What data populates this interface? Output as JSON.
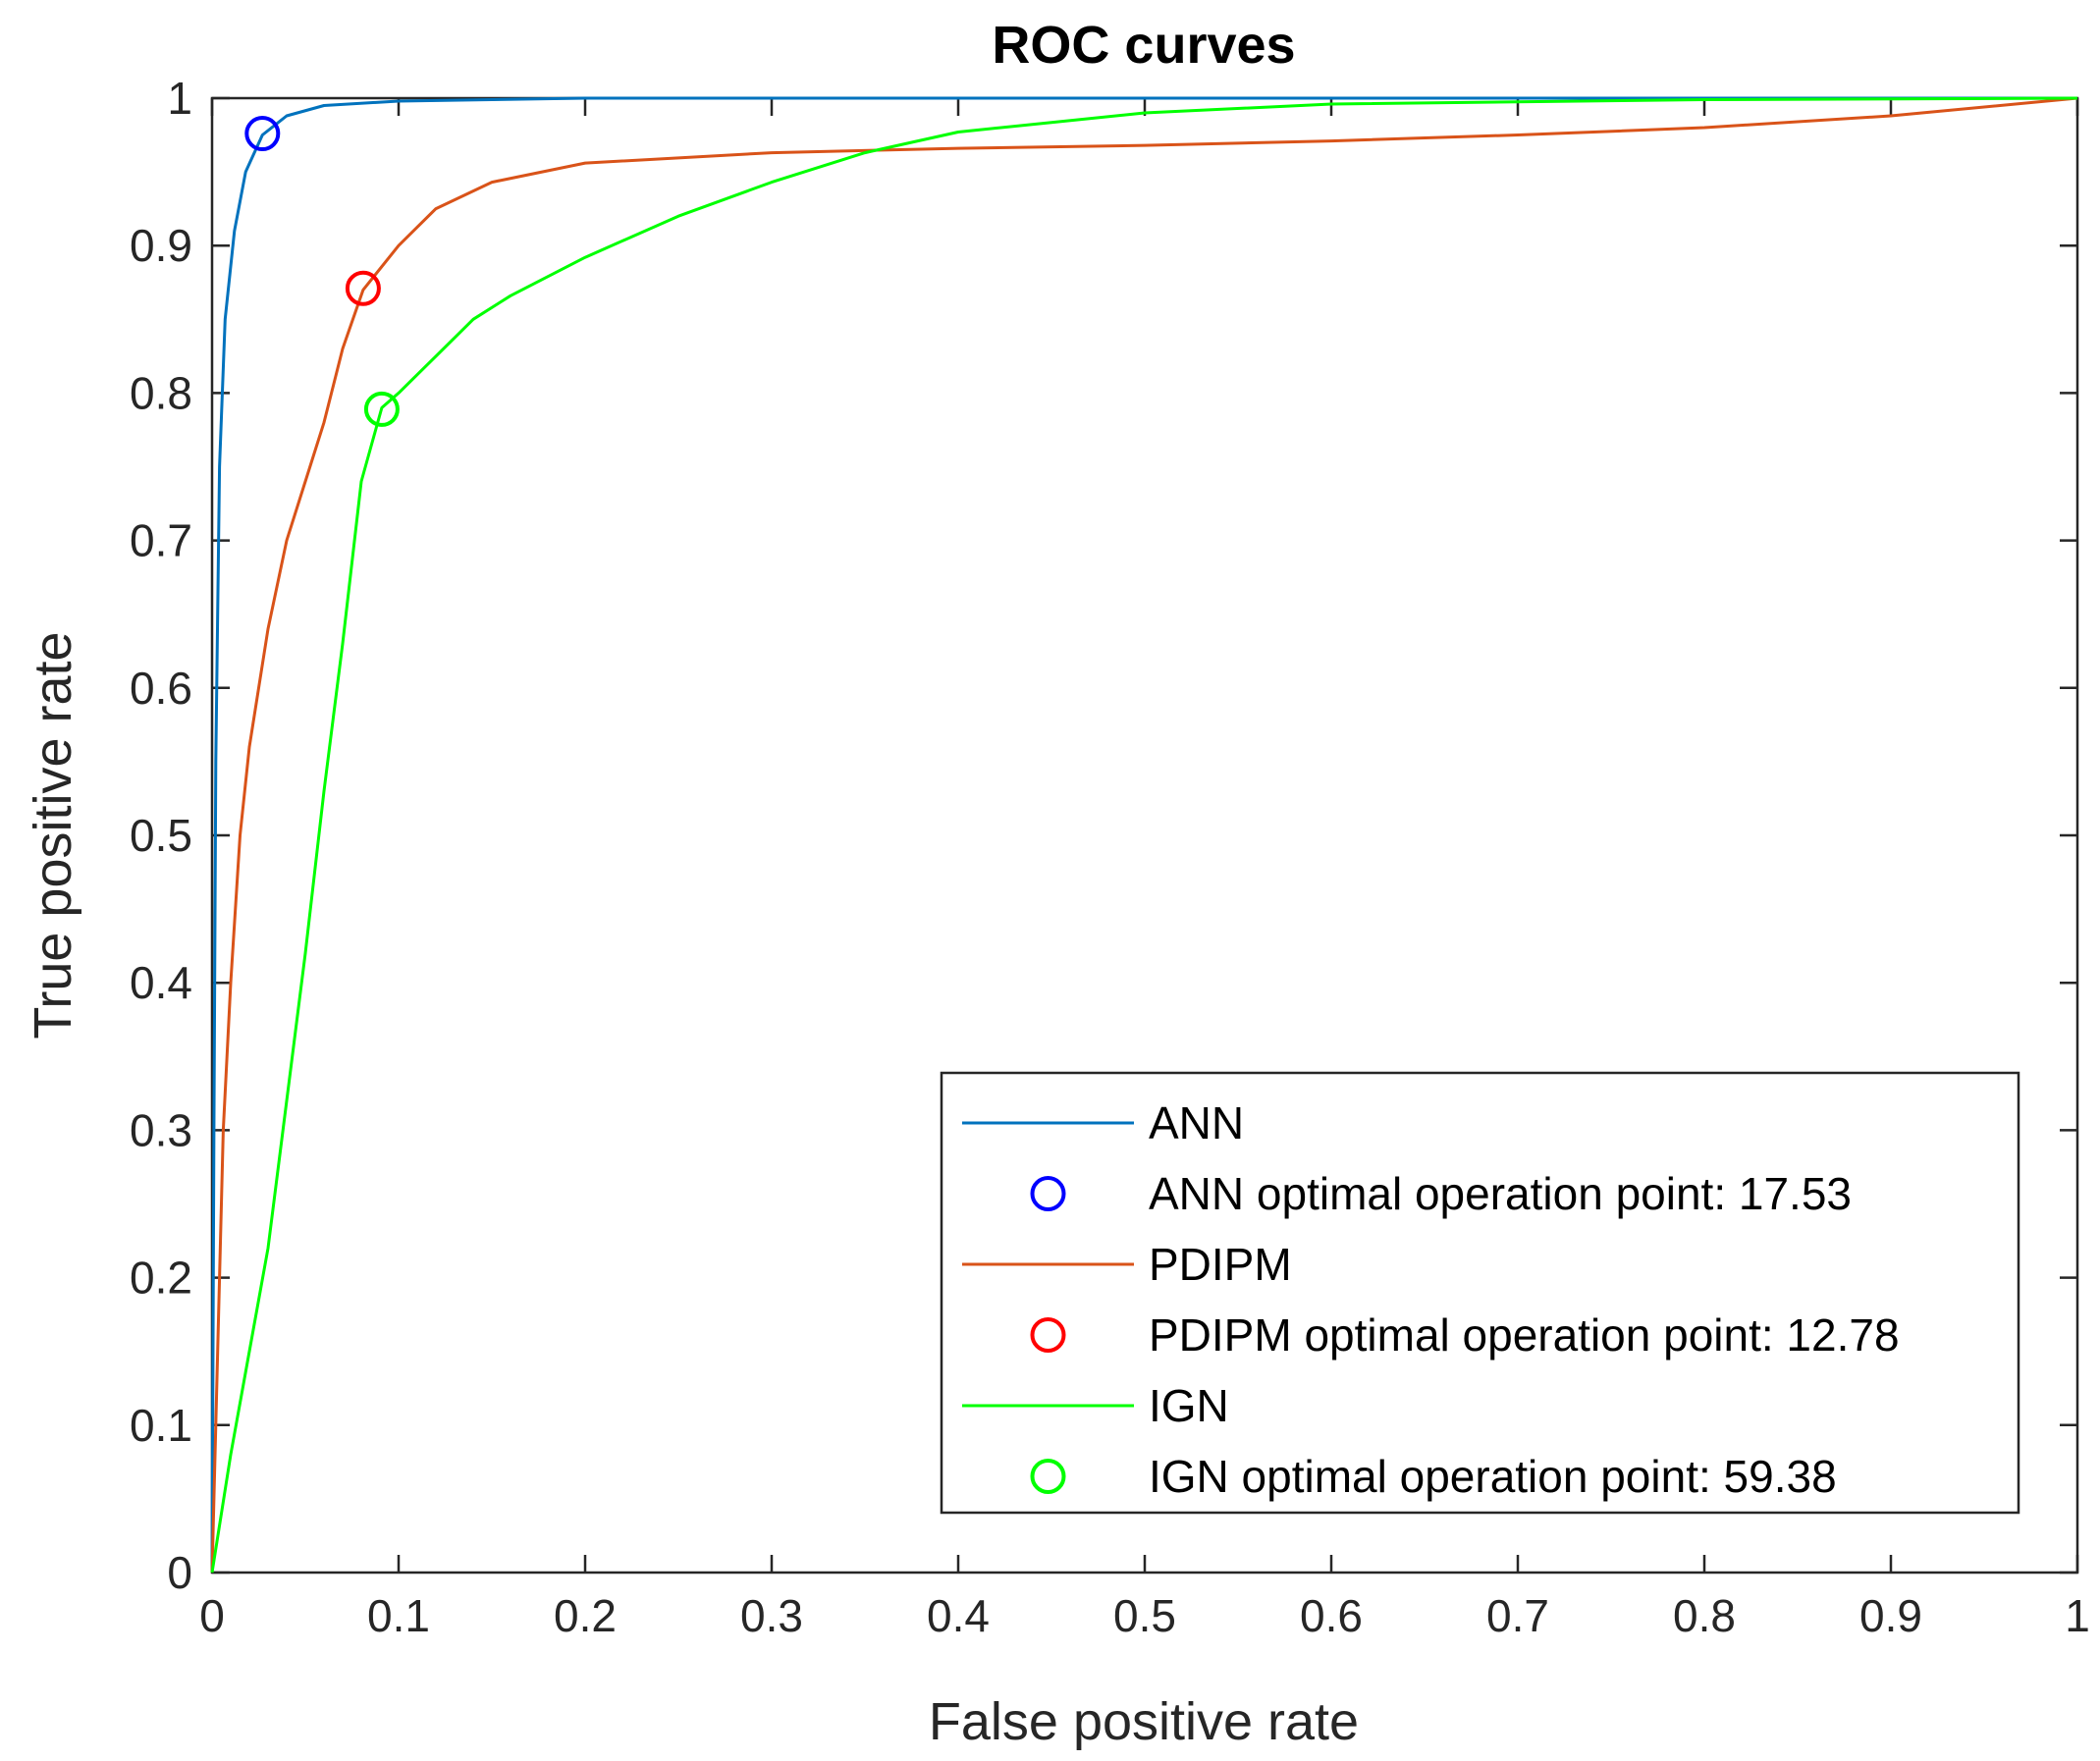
{
  "chart_data": {
    "type": "line",
    "title": "ROC curves",
    "xlabel": "False positive rate",
    "ylabel": "True positive rate",
    "xlim": [
      0,
      1
    ],
    "ylim": [
      0,
      1
    ],
    "grid": false,
    "legend_position": "bottom-right",
    "x_ticks": [
      {
        "value": 0,
        "label": "0"
      },
      {
        "value": 0.1,
        "label": "0.1"
      },
      {
        "value": 0.2,
        "label": "0.2"
      },
      {
        "value": 0.3,
        "label": "0.3"
      },
      {
        "value": 0.4,
        "label": "0.4"
      },
      {
        "value": 0.5,
        "label": "0.5"
      },
      {
        "value": 0.6,
        "label": "0.6"
      },
      {
        "value": 0.7,
        "label": "0.7"
      },
      {
        "value": 0.8,
        "label": "0.8"
      },
      {
        "value": 0.9,
        "label": "0.9"
      },
      {
        "value": 1,
        "label": "1"
      }
    ],
    "y_ticks": [
      {
        "value": 0,
        "label": "0"
      },
      {
        "value": 0.1,
        "label": "0.1"
      },
      {
        "value": 0.2,
        "label": "0.2"
      },
      {
        "value": 0.3,
        "label": "0.3"
      },
      {
        "value": 0.4,
        "label": "0.4"
      },
      {
        "value": 0.5,
        "label": "0.5"
      },
      {
        "value": 0.6,
        "label": "0.6"
      },
      {
        "value": 0.7,
        "label": "0.7"
      },
      {
        "value": 0.8,
        "label": "0.8"
      },
      {
        "value": 0.9,
        "label": "0.9"
      },
      {
        "value": 1,
        "label": "1"
      }
    ],
    "series": [
      {
        "name": "ANN",
        "kind": "line",
        "color": "#0072BD",
        "points": [
          [
            0,
            0
          ],
          [
            0.001,
            0.3
          ],
          [
            0.002,
            0.55
          ],
          [
            0.004,
            0.75
          ],
          [
            0.007,
            0.85
          ],
          [
            0.012,
            0.91
          ],
          [
            0.018,
            0.95
          ],
          [
            0.027,
            0.975
          ],
          [
            0.04,
            0.988
          ],
          [
            0.06,
            0.995
          ],
          [
            0.1,
            0.998
          ],
          [
            0.2,
            1.0
          ],
          [
            1,
            1.0
          ]
        ]
      },
      {
        "name": "ANN optimal operation point: 17.53",
        "kind": "marker",
        "color": "#0000FF",
        "point": [
          0.027,
          0.976
        ]
      },
      {
        "name": "PDIPM",
        "kind": "line",
        "color": "#D95319",
        "points": [
          [
            0,
            0
          ],
          [
            0.003,
            0.15
          ],
          [
            0.006,
            0.3
          ],
          [
            0.01,
            0.4
          ],
          [
            0.015,
            0.5
          ],
          [
            0.02,
            0.56
          ],
          [
            0.03,
            0.64
          ],
          [
            0.04,
            0.7
          ],
          [
            0.05,
            0.74
          ],
          [
            0.06,
            0.78
          ],
          [
            0.07,
            0.83
          ],
          [
            0.081,
            0.87
          ],
          [
            0.1,
            0.9
          ],
          [
            0.12,
            0.925
          ],
          [
            0.15,
            0.943
          ],
          [
            0.2,
            0.956
          ],
          [
            0.3,
            0.963
          ],
          [
            0.4,
            0.966
          ],
          [
            0.5,
            0.968
          ],
          [
            0.6,
            0.971
          ],
          [
            0.7,
            0.975
          ],
          [
            0.8,
            0.98
          ],
          [
            0.9,
            0.988
          ],
          [
            1,
            1.0
          ]
        ]
      },
      {
        "name": "PDIPM optimal operation point: 12.78",
        "kind": "marker",
        "color": "#FF0000",
        "point": [
          0.081,
          0.871
        ]
      },
      {
        "name": "IGN",
        "kind": "line",
        "color": "#00FF00",
        "points": [
          [
            0,
            0
          ],
          [
            0.01,
            0.08
          ],
          [
            0.02,
            0.15
          ],
          [
            0.03,
            0.22
          ],
          [
            0.04,
            0.32
          ],
          [
            0.05,
            0.42
          ],
          [
            0.06,
            0.53
          ],
          [
            0.07,
            0.63
          ],
          [
            0.08,
            0.74
          ],
          [
            0.091,
            0.79
          ],
          [
            0.1,
            0.8
          ],
          [
            0.12,
            0.825
          ],
          [
            0.14,
            0.85
          ],
          [
            0.16,
            0.866
          ],
          [
            0.2,
            0.892
          ],
          [
            0.25,
            0.92
          ],
          [
            0.3,
            0.943
          ],
          [
            0.35,
            0.963
          ],
          [
            0.4,
            0.977
          ],
          [
            0.5,
            0.99
          ],
          [
            0.6,
            0.996
          ],
          [
            0.8,
            0.999
          ],
          [
            1,
            1.0
          ]
        ]
      },
      {
        "name": "IGN optimal operation point: 59.38",
        "kind": "marker",
        "color": "#00FF00",
        "point": [
          0.091,
          0.789
        ]
      }
    ]
  }
}
